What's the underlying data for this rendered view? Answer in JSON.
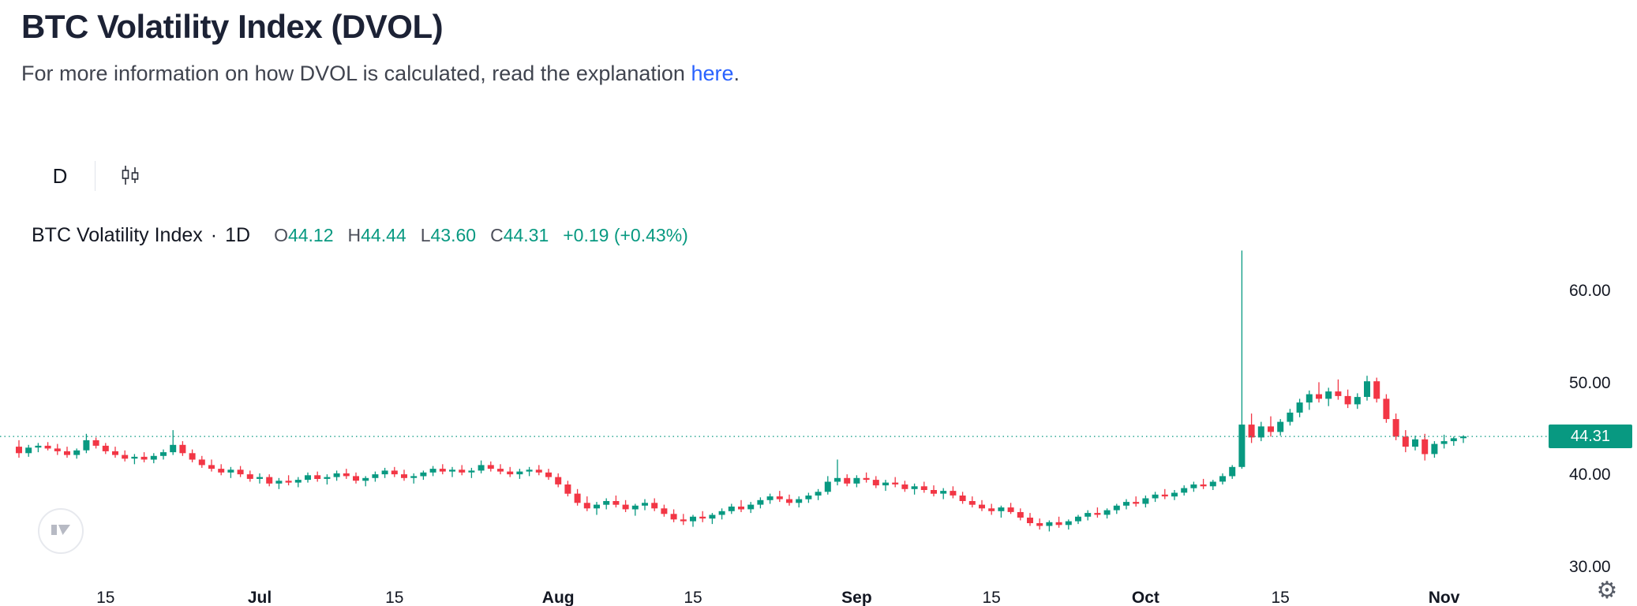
{
  "page": {
    "title": "BTC Volatility Index (DVOL)",
    "subtitle_prefix": "For more information on how DVOL is calculated, read the explanation ",
    "subtitle_link": "here",
    "subtitle_suffix": "."
  },
  "toolbar": {
    "interval_label": "D"
  },
  "legend": {
    "symbol": "BTC Volatility Index",
    "separator": "·",
    "interval": "1D",
    "ohlc": [
      {
        "label": "O",
        "value": "44.12"
      },
      {
        "label": "H",
        "value": "44.44"
      },
      {
        "label": "L",
        "value": "43.60"
      },
      {
        "label": "C",
        "value": "44.31"
      }
    ],
    "change": "+0.19 (+0.43%)"
  },
  "price_axis": {
    "last_price_label": "44.31"
  },
  "colors": {
    "up": "#089981",
    "down": "#f23645",
    "link": "#2962ff",
    "axis_text": "#131722"
  },
  "chart_data": {
    "type": "candlestick",
    "title": "BTC Volatility Index · 1D",
    "ylabel": "",
    "xlabel": "",
    "y_view": [
      28.3,
      66
    ],
    "y_ticks": [
      [
        60,
        "60.00"
      ],
      [
        50,
        "50.00"
      ],
      [
        40,
        "40.00"
      ],
      [
        30,
        "30.00"
      ]
    ],
    "x_ticks": [
      [
        9,
        "15"
      ],
      [
        25,
        "Jul"
      ],
      [
        39,
        "15"
      ],
      [
        56,
        "Aug"
      ],
      [
        70,
        "15"
      ],
      [
        87,
        "Sep"
      ],
      [
        101,
        "15"
      ],
      [
        117,
        "Oct"
      ],
      [
        131,
        "15"
      ],
      [
        148,
        "Nov"
      ]
    ],
    "last_price": 44.31,
    "candles": [
      [
        "Jun 6",
        43.2,
        43.9,
        42.0,
        42.5
      ],
      [
        "Jun 7",
        42.5,
        43.4,
        42.1,
        43.1
      ],
      [
        "Jun 8",
        43.1,
        43.6,
        42.6,
        43.3
      ],
      [
        "Jun 9",
        43.3,
        43.7,
        42.8,
        43.0
      ],
      [
        "Jun 10",
        43.0,
        43.5,
        42.3,
        42.7
      ],
      [
        "Jun 11",
        42.7,
        43.2,
        42.0,
        42.3
      ],
      [
        "Jun 12",
        42.3,
        43.0,
        41.9,
        42.8
      ],
      [
        "Jun 13",
        42.8,
        44.6,
        42.5,
        43.9
      ],
      [
        "Jun 14",
        43.9,
        44.2,
        43.0,
        43.3
      ],
      [
        "Jun 15",
        43.3,
        43.6,
        42.4,
        42.7
      ],
      [
        "Jun 16",
        42.7,
        43.2,
        42.0,
        42.3
      ],
      [
        "Jun 17",
        42.3,
        42.8,
        41.6,
        41.9
      ],
      [
        "Jun 18",
        41.9,
        42.4,
        41.3,
        42.1
      ],
      [
        "Jun 19",
        42.1,
        42.6,
        41.5,
        41.8
      ],
      [
        "Jun 20",
        41.8,
        42.5,
        41.4,
        42.2
      ],
      [
        "Jun 21",
        42.2,
        42.9,
        41.8,
        42.6
      ],
      [
        "Jun 22",
        42.6,
        45.0,
        42.3,
        43.4
      ],
      [
        "Jun 23",
        43.4,
        43.8,
        42.2,
        42.5
      ],
      [
        "Jun 24",
        42.5,
        42.9,
        41.5,
        41.8
      ],
      [
        "Jun 25",
        41.8,
        42.2,
        40.9,
        41.2
      ],
      [
        "Jun 26",
        41.2,
        41.8,
        40.5,
        40.8
      ],
      [
        "Jun 27",
        40.8,
        41.3,
        40.1,
        40.4
      ],
      [
        "Jun 28",
        40.4,
        41.0,
        39.8,
        40.7
      ],
      [
        "Jun 29",
        40.7,
        41.1,
        39.9,
        40.2
      ],
      [
        "Jun 30",
        40.2,
        40.6,
        39.4,
        39.7
      ],
      [
        "Jul 1",
        39.7,
        40.3,
        39.2,
        39.9
      ],
      [
        "Jul 2",
        39.9,
        40.2,
        38.9,
        39.2
      ],
      [
        "Jul 3",
        39.2,
        39.8,
        38.6,
        39.5
      ],
      [
        "Jul 4",
        39.5,
        40.1,
        39.0,
        39.3
      ],
      [
        "Jul 5",
        39.3,
        39.9,
        38.8,
        39.6
      ],
      [
        "Jul 6",
        39.6,
        40.4,
        39.3,
        40.1
      ],
      [
        "Jul 7",
        40.1,
        40.5,
        39.4,
        39.7
      ],
      [
        "Jul 8",
        39.7,
        40.2,
        39.1,
        39.9
      ],
      [
        "Jul 9",
        39.9,
        40.6,
        39.5,
        40.3
      ],
      [
        "Jul 10",
        40.3,
        40.8,
        39.7,
        40.0
      ],
      [
        "Jul 11",
        40.0,
        40.4,
        39.2,
        39.5
      ],
      [
        "Jul 12",
        39.5,
        40.0,
        38.9,
        39.8
      ],
      [
        "Jul 13",
        39.8,
        40.5,
        39.4,
        40.2
      ],
      [
        "Jul 14",
        40.2,
        40.9,
        39.8,
        40.6
      ],
      [
        "Jul 15",
        40.6,
        41.0,
        39.9,
        40.2
      ],
      [
        "Jul 16",
        40.2,
        40.7,
        39.5,
        39.8
      ],
      [
        "Jul 17",
        39.8,
        40.3,
        39.2,
        40.0
      ],
      [
        "Jul 18",
        40.0,
        40.6,
        39.6,
        40.4
      ],
      [
        "Jul 19",
        40.4,
        41.1,
        40.0,
        40.8
      ],
      [
        "Jul 20",
        40.8,
        41.3,
        40.2,
        40.5
      ],
      [
        "Jul 21",
        40.5,
        41.0,
        39.9,
        40.7
      ],
      [
        "Jul 22",
        40.7,
        41.2,
        40.1,
        40.4
      ],
      [
        "Jul 23",
        40.4,
        40.9,
        39.8,
        40.6
      ],
      [
        "Jul 24",
        40.6,
        41.7,
        40.3,
        41.2
      ],
      [
        "Jul 25",
        41.2,
        41.6,
        40.5,
        40.8
      ],
      [
        "Jul 26",
        40.8,
        41.3,
        40.2,
        40.5
      ],
      [
        "Jul 27",
        40.5,
        41.0,
        39.9,
        40.2
      ],
      [
        "Jul 28",
        40.2,
        40.8,
        39.7,
        40.5
      ],
      [
        "Jul 29",
        40.5,
        41.0,
        40.0,
        40.7
      ],
      [
        "Jul 30",
        40.7,
        41.2,
        40.1,
        40.4
      ],
      [
        "Jul 31",
        40.4,
        40.8,
        39.6,
        39.9
      ],
      [
        "Aug 1",
        39.9,
        40.3,
        38.8,
        39.1
      ],
      [
        "Aug 2",
        39.1,
        39.5,
        37.8,
        38.1
      ],
      [
        "Aug 3",
        38.1,
        38.6,
        36.8,
        37.1
      ],
      [
        "Aug 4",
        37.1,
        37.8,
        36.2,
        36.5
      ],
      [
        "Aug 5",
        36.5,
        37.2,
        35.8,
        36.9
      ],
      [
        "Aug 6",
        36.9,
        37.6,
        36.4,
        37.3
      ],
      [
        "Aug 7",
        37.3,
        37.9,
        36.6,
        36.9
      ],
      [
        "Aug 8",
        36.9,
        37.4,
        36.1,
        36.4
      ],
      [
        "Aug 9",
        36.4,
        37.0,
        35.7,
        36.8
      ],
      [
        "Aug 10",
        36.8,
        37.5,
        36.3,
        37.1
      ],
      [
        "Aug 11",
        37.1,
        37.6,
        36.2,
        36.5
      ],
      [
        "Aug 12",
        36.5,
        36.9,
        35.6,
        35.9
      ],
      [
        "Aug 13",
        35.9,
        36.4,
        35.0,
        35.3
      ],
      [
        "Aug 14",
        35.3,
        35.9,
        34.7,
        35.1
      ],
      [
        "Aug 15",
        35.1,
        35.8,
        34.5,
        35.6
      ],
      [
        "Aug 16",
        35.6,
        36.2,
        35.0,
        35.4
      ],
      [
        "Aug 17",
        35.4,
        36.0,
        34.8,
        35.8
      ],
      [
        "Aug 18",
        35.8,
        36.5,
        35.3,
        36.2
      ],
      [
        "Aug 19",
        36.2,
        37.0,
        35.9,
        36.7
      ],
      [
        "Aug 20",
        36.7,
        37.4,
        36.1,
        36.4
      ],
      [
        "Aug 21",
        36.4,
        37.2,
        36.0,
        36.9
      ],
      [
        "Aug 22",
        36.9,
        37.7,
        36.5,
        37.4
      ],
      [
        "Aug 23",
        37.4,
        38.1,
        37.0,
        37.8
      ],
      [
        "Aug 24",
        37.8,
        38.4,
        37.2,
        37.5
      ],
      [
        "Aug 25",
        37.5,
        38.0,
        36.8,
        37.1
      ],
      [
        "Aug 26",
        37.1,
        37.8,
        36.6,
        37.5
      ],
      [
        "Aug 27",
        37.5,
        38.2,
        37.1,
        37.9
      ],
      [
        "Aug 28",
        37.9,
        38.6,
        37.4,
        38.3
      ],
      [
        "Aug 29",
        38.3,
        40.0,
        38.0,
        39.4
      ],
      [
        "Aug 30",
        39.4,
        41.8,
        39.0,
        39.8
      ],
      [
        "Aug 31",
        39.8,
        40.2,
        38.9,
        39.2
      ],
      [
        "Sep 1",
        39.2,
        40.1,
        38.8,
        39.8
      ],
      [
        "Sep 2",
        39.8,
        40.4,
        39.3,
        39.6
      ],
      [
        "Sep 3",
        39.6,
        40.0,
        38.7,
        39.0
      ],
      [
        "Sep 4",
        39.0,
        39.6,
        38.4,
        39.3
      ],
      [
        "Sep 5",
        39.3,
        39.9,
        38.8,
        39.1
      ],
      [
        "Sep 6",
        39.1,
        39.5,
        38.3,
        38.6
      ],
      [
        "Sep 7",
        38.6,
        39.2,
        38.0,
        38.9
      ],
      [
        "Sep 8",
        38.9,
        39.4,
        38.2,
        38.5
      ],
      [
        "Sep 9",
        38.5,
        39.0,
        37.8,
        38.1
      ],
      [
        "Sep 10",
        38.1,
        38.7,
        37.5,
        38.4
      ],
      [
        "Sep 11",
        38.4,
        38.9,
        37.6,
        37.9
      ],
      [
        "Sep 12",
        37.9,
        38.3,
        37.0,
        37.3
      ],
      [
        "Sep 13",
        37.3,
        37.8,
        36.6,
        36.9
      ],
      [
        "Sep 14",
        36.9,
        37.4,
        36.2,
        36.5
      ],
      [
        "Sep 15",
        36.5,
        37.0,
        35.8,
        36.2
      ],
      [
        "Sep 16",
        36.2,
        36.8,
        35.5,
        36.6
      ],
      [
        "Sep 17",
        36.6,
        37.1,
        35.9,
        36.1
      ],
      [
        "Sep 18",
        36.1,
        36.5,
        35.2,
        35.5
      ],
      [
        "Sep 19",
        35.5,
        36.0,
        34.6,
        34.9
      ],
      [
        "Sep 20",
        34.9,
        35.4,
        34.2,
        34.6
      ],
      [
        "Sep 21",
        34.6,
        35.2,
        34.0,
        35.0
      ],
      [
        "Sep 22",
        35.0,
        35.6,
        34.4,
        34.7
      ],
      [
        "Sep 23",
        34.7,
        35.3,
        34.2,
        35.1
      ],
      [
        "Sep 24",
        35.1,
        35.8,
        34.8,
        35.6
      ],
      [
        "Sep 25",
        35.6,
        36.3,
        35.2,
        36.0
      ],
      [
        "Sep 26",
        36.0,
        36.6,
        35.5,
        35.8
      ],
      [
        "Sep 27",
        35.8,
        36.5,
        35.4,
        36.3
      ],
      [
        "Sep 28",
        36.3,
        37.0,
        35.9,
        36.8
      ],
      [
        "Sep 29",
        36.8,
        37.5,
        36.4,
        37.2
      ],
      [
        "Sep 30",
        37.2,
        37.8,
        36.7,
        37.0
      ],
      [
        "Oct 1",
        37.0,
        37.9,
        36.6,
        37.6
      ],
      [
        "Oct 2",
        37.6,
        38.3,
        37.2,
        38.0
      ],
      [
        "Oct 3",
        38.0,
        38.6,
        37.5,
        37.8
      ],
      [
        "Oct 4",
        37.8,
        38.5,
        37.4,
        38.2
      ],
      [
        "Oct 5",
        38.2,
        39.0,
        37.9,
        38.7
      ],
      [
        "Oct 6",
        38.7,
        39.4,
        38.3,
        39.1
      ],
      [
        "Oct 7",
        39.1,
        39.7,
        38.6,
        38.9
      ],
      [
        "Oct 8",
        38.9,
        39.6,
        38.5,
        39.4
      ],
      [
        "Oct 9",
        39.4,
        40.3,
        39.1,
        40.0
      ],
      [
        "Oct 10",
        40.0,
        41.2,
        39.7,
        41.0
      ],
      [
        "Oct 11",
        41.0,
        64.5,
        40.8,
        45.6
      ],
      [
        "Oct 12",
        45.6,
        46.8,
        43.6,
        44.2
      ],
      [
        "Oct 13",
        44.2,
        45.9,
        43.8,
        45.4
      ],
      [
        "Oct 14",
        45.4,
        46.5,
        44.3,
        44.8
      ],
      [
        "Oct 15",
        44.8,
        46.2,
        44.4,
        45.9
      ],
      [
        "Oct 16",
        45.9,
        47.3,
        45.5,
        46.9
      ],
      [
        "Oct 17",
        46.9,
        48.4,
        46.4,
        48.0
      ],
      [
        "Oct 18",
        48.0,
        49.3,
        47.2,
        48.9
      ],
      [
        "Oct 19",
        48.9,
        50.2,
        48.0,
        48.4
      ],
      [
        "Oct 20",
        48.4,
        49.6,
        47.6,
        49.2
      ],
      [
        "Oct 21",
        49.2,
        50.5,
        48.3,
        48.7
      ],
      [
        "Oct 22",
        48.7,
        49.4,
        47.4,
        47.8
      ],
      [
        "Oct 23",
        47.8,
        49.0,
        47.3,
        48.6
      ],
      [
        "Oct 24",
        48.6,
        50.9,
        48.2,
        50.3
      ],
      [
        "Oct 25",
        50.3,
        50.7,
        48.0,
        48.4
      ],
      [
        "Oct 26",
        48.4,
        48.9,
        45.8,
        46.2
      ],
      [
        "Oct 27",
        46.2,
        46.8,
        43.9,
        44.3
      ],
      [
        "Oct 28",
        44.3,
        45.0,
        42.6,
        43.2
      ],
      [
        "Oct 29",
        43.2,
        44.4,
        42.8,
        44.0
      ],
      [
        "Oct 30",
        44.0,
        44.6,
        41.7,
        42.4
      ],
      [
        "Oct 31",
        42.4,
        43.8,
        42.0,
        43.5
      ],
      [
        "Nov 1",
        43.5,
        44.5,
        43.0,
        43.8
      ],
      [
        "Nov 2",
        43.8,
        44.3,
        43.3,
        44.12
      ],
      [
        "Nov 3",
        44.12,
        44.44,
        43.6,
        44.31
      ]
    ]
  }
}
